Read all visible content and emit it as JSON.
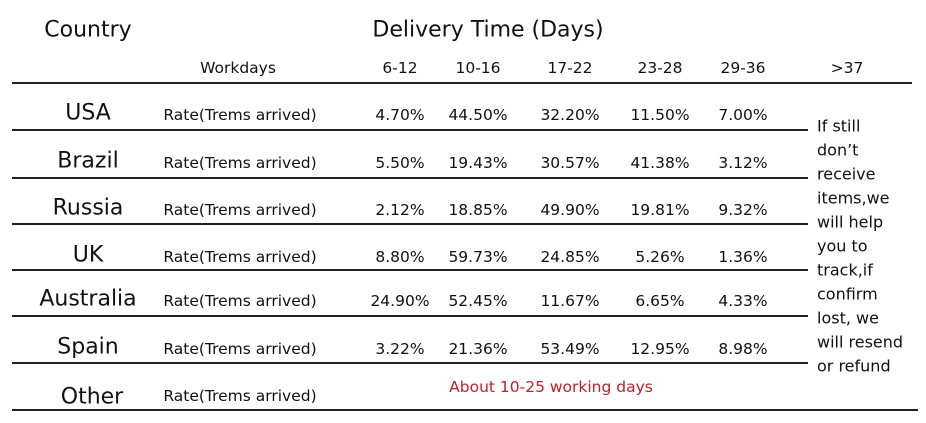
{
  "header": {
    "country": "Country",
    "title": "Delivery Time (Days)"
  },
  "subheader": {
    "label": "Workdays",
    "ranges": [
      "6-12",
      "10-16",
      "17-22",
      "23-28",
      "29-36",
      ">37"
    ]
  },
  "table": {
    "rows": [
      {
        "country": "USA",
        "metric": "Rate(Trems arrived)",
        "values": [
          "4.70%",
          "44.50%",
          "32.20%",
          "11.50%",
          "7.00%"
        ]
      },
      {
        "country": "Brazil",
        "metric": "Rate(Trems arrived)",
        "values": [
          "5.50%",
          "19.43%",
          "30.57%",
          "41.38%",
          "3.12%"
        ]
      },
      {
        "country": "Russia",
        "metric": "Rate(Trems arrived)",
        "values": [
          "2.12%",
          "18.85%",
          "49.90%",
          "19.81%",
          "9.32%"
        ]
      },
      {
        "country": "UK",
        "metric": "Rate(Trems arrived)",
        "values": [
          "8.80%",
          "59.73%",
          "24.85%",
          "5.26%",
          "1.36%"
        ]
      },
      {
        "country": "Australia",
        "metric": "Rate(Trems arrived)",
        "values": [
          "24.90%",
          "52.45%",
          "11.67%",
          "6.65%",
          "4.33%"
        ]
      },
      {
        "country": "Spain",
        "metric": "Rate(Trems arrived)",
        "values": [
          "3.22%",
          "21.36%",
          "53.49%",
          "12.95%",
          "8.98%"
        ]
      }
    ],
    "other": {
      "country": "Other",
      "metric": "Rate(Trems arrived)",
      "note": "About 10-25 working days"
    }
  },
  "side_note": {
    "lines": [
      "If still",
      "don’t",
      "receive",
      "items,we",
      "will help",
      "you to",
      "track,if",
      "confirm",
      "lost, we",
      "will resend",
      "or refund"
    ]
  }
}
